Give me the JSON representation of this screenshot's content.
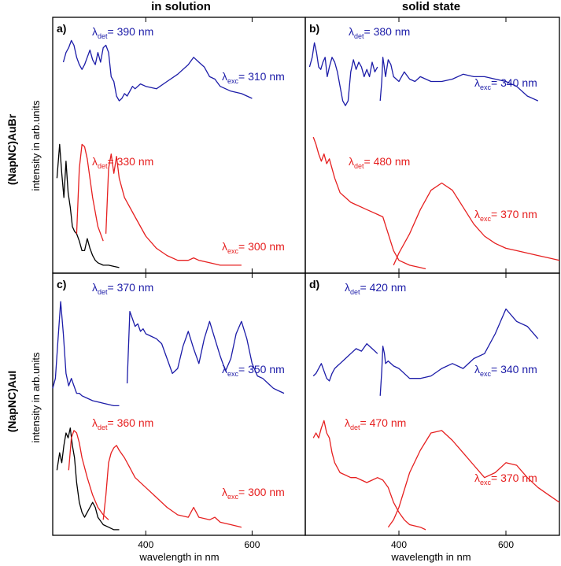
{
  "figure": {
    "column_titles": [
      "in solution",
      "solid state"
    ],
    "row_titles": [
      "(NapNC)AuBr",
      "(NapNC)AuI"
    ],
    "ylabel": "intensity in arb.units",
    "xlabel": "wavelength in nm"
  },
  "colors": {
    "blue": "#1c1ca8",
    "red": "#e62020",
    "black": "#000000"
  },
  "chart_data": [
    {
      "panel": "a)",
      "type": "line",
      "xlim": [
        225,
        700
      ],
      "xticks": [
        400,
        600
      ],
      "ylim": [
        0,
        1
      ],
      "annotations": [
        {
          "sym": "λ",
          "sub": "det",
          "text": "= 390 nm",
          "color": "blue"
        },
        {
          "sym": "λ",
          "sub": "exc",
          "text": "= 310 nm",
          "color": "blue"
        },
        {
          "sym": "λ",
          "sub": "det",
          "text": "= 330 nm",
          "color": "red"
        },
        {
          "sym": "λ",
          "sub": "exc",
          "text": "= 300 nm",
          "color": "red"
        }
      ],
      "series": [
        {
          "color": "black",
          "x": [
            233,
            238,
            242,
            246,
            250,
            254,
            258,
            262,
            266,
            270,
            275,
            280,
            285,
            290,
            295,
            300,
            305,
            310,
            320,
            330,
            340,
            350
          ],
          "y": [
            0.38,
            0.52,
            0.4,
            0.3,
            0.45,
            0.32,
            0.26,
            0.18,
            0.16,
            0.15,
            0.12,
            0.08,
            0.08,
            0.13,
            0.09,
            0.06,
            0.04,
            0.03,
            0.02,
            0.02,
            0.015,
            0.01
          ]
        },
        {
          "color": "red",
          "x": [
            270,
            275,
            280,
            285,
            290,
            300,
            310,
            320
          ],
          "y": [
            0.15,
            0.42,
            0.52,
            0.51,
            0.46,
            0.3,
            0.18,
            0.12
          ]
        },
        {
          "color": "red",
          "x": [
            325,
            330,
            335,
            340,
            345,
            350,
            360,
            380,
            400,
            420,
            440,
            460,
            480,
            490,
            500,
            520,
            540,
            560,
            580
          ],
          "y": [
            0.15,
            0.42,
            0.48,
            0.4,
            0.47,
            0.38,
            0.3,
            0.22,
            0.14,
            0.09,
            0.06,
            0.04,
            0.04,
            0.05,
            0.04,
            0.03,
            0.02,
            0.02,
            0.02
          ]
        },
        {
          "color": "blue",
          "x": [
            245,
            250,
            255,
            260,
            265,
            270,
            275,
            280,
            285,
            290,
            295,
            300,
            305,
            310,
            315,
            320,
            325,
            330,
            335,
            340,
            345,
            350,
            355,
            360,
            365,
            370,
            375,
            380,
            390,
            400,
            420,
            440,
            460,
            480,
            490,
            500,
            510,
            520,
            530,
            540,
            560,
            580,
            600
          ],
          "y": [
            0.86,
            0.9,
            0.92,
            0.95,
            0.93,
            0.88,
            0.85,
            0.83,
            0.85,
            0.88,
            0.91,
            0.87,
            0.85,
            0.9,
            0.86,
            0.92,
            0.93,
            0.9,
            0.8,
            0.78,
            0.72,
            0.7,
            0.71,
            0.73,
            0.72,
            0.74,
            0.76,
            0.75,
            0.77,
            0.76,
            0.75,
            0.78,
            0.81,
            0.85,
            0.88,
            0.86,
            0.84,
            0.8,
            0.79,
            0.76,
            0.74,
            0.73,
            0.71
          ]
        }
      ]
    },
    {
      "panel": "b)",
      "type": "line",
      "xlim": [
        225,
        700
      ],
      "xticks": [
        400,
        600
      ],
      "ylim": [
        0,
        1
      ],
      "annotations": [
        {
          "sym": "λ",
          "sub": "det",
          "text": "= 380 nm",
          "color": "blue"
        },
        {
          "sym": "λ",
          "sub": "exc",
          "text": "= 340 nm",
          "color": "blue"
        },
        {
          "sym": "λ",
          "sub": "det",
          "text": "= 480 nm",
          "color": "red"
        },
        {
          "sym": "λ",
          "sub": "exc",
          "text": "= 370 nm",
          "color": "red"
        }
      ],
      "series": [
        {
          "color": "blue",
          "x": [
            233,
            238,
            242,
            246,
            250,
            254,
            258,
            262,
            266,
            270,
            275,
            280,
            285,
            290,
            295,
            300,
            305,
            310,
            315,
            320,
            325,
            330,
            335,
            340,
            345,
            350,
            355,
            360
          ],
          "y": [
            0.84,
            0.88,
            0.94,
            0.9,
            0.84,
            0.83,
            0.86,
            0.88,
            0.8,
            0.84,
            0.88,
            0.86,
            0.82,
            0.76,
            0.7,
            0.68,
            0.7,
            0.82,
            0.87,
            0.83,
            0.86,
            0.84,
            0.8,
            0.83,
            0.8,
            0.86,
            0.82,
            0.84
          ]
        },
        {
          "color": "blue",
          "x": [
            365,
            368,
            370,
            372,
            375,
            380,
            385,
            390,
            400,
            410,
            420,
            430,
            440,
            460,
            480,
            500,
            520,
            540,
            560,
            580,
            600,
            620,
            640,
            660
          ],
          "y": [
            0.7,
            0.78,
            0.88,
            0.85,
            0.8,
            0.87,
            0.85,
            0.8,
            0.78,
            0.82,
            0.79,
            0.78,
            0.8,
            0.78,
            0.78,
            0.79,
            0.81,
            0.8,
            0.8,
            0.79,
            0.78,
            0.76,
            0.72,
            0.7
          ]
        },
        {
          "color": "red",
          "x": [
            240,
            245,
            250,
            255,
            260,
            265,
            270,
            275,
            280,
            290,
            300,
            310,
            320,
            330,
            340,
            350,
            360,
            370,
            380,
            390,
            400,
            420,
            440,
            450
          ],
          "y": [
            0.55,
            0.52,
            0.48,
            0.45,
            0.48,
            0.44,
            0.46,
            0.42,
            0.38,
            0.32,
            0.3,
            0.28,
            0.27,
            0.26,
            0.25,
            0.24,
            0.23,
            0.22,
            0.15,
            0.08,
            0.04,
            0.02,
            0.01,
            0.005
          ]
        },
        {
          "color": "red",
          "x": [
            390,
            400,
            420,
            440,
            460,
            480,
            500,
            520,
            540,
            560,
            580,
            600,
            620,
            640,
            660,
            680,
            700
          ],
          "y": [
            0.02,
            0.07,
            0.15,
            0.25,
            0.33,
            0.36,
            0.33,
            0.26,
            0.19,
            0.14,
            0.11,
            0.09,
            0.08,
            0.07,
            0.06,
            0.05,
            0.04
          ]
        }
      ]
    },
    {
      "panel": "c)",
      "type": "line",
      "xlim": [
        225,
        700
      ],
      "xticks": [
        400,
        600
      ],
      "ylim": [
        0,
        1
      ],
      "annotations": [
        {
          "sym": "λ",
          "sub": "det",
          "text": "= 370 nm",
          "color": "blue"
        },
        {
          "sym": "λ",
          "sub": "exc",
          "text": "= 350 nm",
          "color": "blue"
        },
        {
          "sym": "λ",
          "sub": "det",
          "text": "= 360 nm",
          "color": "red"
        },
        {
          "sym": "λ",
          "sub": "exc",
          "text": "= 300 nm",
          "color": "red"
        }
      ],
      "series": [
        {
          "color": "blue",
          "x": [
            225,
            230,
            235,
            240,
            245,
            250,
            255,
            260,
            265,
            270,
            275,
            280,
            290,
            300,
            320,
            340,
            350
          ],
          "y": [
            0.58,
            0.62,
            0.78,
            0.93,
            0.8,
            0.64,
            0.59,
            0.62,
            0.59,
            0.56,
            0.56,
            0.55,
            0.54,
            0.53,
            0.52,
            0.51,
            0.51
          ]
        },
        {
          "color": "blue",
          "x": [
            365,
            370,
            375,
            380,
            385,
            390,
            395,
            400,
            410,
            420,
            430,
            440,
            450,
            460,
            470,
            480,
            490,
            500,
            510,
            520,
            530,
            540,
            550,
            560,
            570,
            580,
            590,
            600,
            610,
            620,
            630,
            640,
            650,
            660
          ],
          "y": [
            0.6,
            0.89,
            0.86,
            0.83,
            0.84,
            0.81,
            0.82,
            0.8,
            0.79,
            0.78,
            0.76,
            0.7,
            0.64,
            0.66,
            0.75,
            0.81,
            0.74,
            0.68,
            0.78,
            0.85,
            0.78,
            0.71,
            0.65,
            0.7,
            0.8,
            0.85,
            0.78,
            0.68,
            0.63,
            0.62,
            0.6,
            0.58,
            0.57,
            0.56
          ]
        },
        {
          "color": "black",
          "x": [
            233,
            238,
            242,
            246,
            250,
            254,
            258,
            262,
            266,
            270,
            275,
            280,
            285,
            290,
            295,
            300,
            305,
            310,
            320,
            330,
            340,
            350
          ],
          "y": [
            0.25,
            0.32,
            0.28,
            0.35,
            0.4,
            0.38,
            0.42,
            0.35,
            0.3,
            0.2,
            0.12,
            0.08,
            0.06,
            0.08,
            0.1,
            0.12,
            0.1,
            0.06,
            0.03,
            0.02,
            0.01,
            0.01
          ]
        },
        {
          "color": "red",
          "x": [
            255,
            260,
            265,
            270,
            275,
            280,
            290,
            300,
            310,
            320,
            330
          ],
          "y": [
            0.25,
            0.38,
            0.41,
            0.4,
            0.36,
            0.3,
            0.22,
            0.15,
            0.1,
            0.07,
            0.05
          ]
        },
        {
          "color": "red",
          "x": [
            320,
            325,
            330,
            335,
            340,
            345,
            350,
            360,
            370,
            380,
            400,
            420,
            440,
            460,
            480,
            490,
            500,
            520,
            530,
            540,
            560,
            580
          ],
          "y": [
            0.05,
            0.15,
            0.28,
            0.32,
            0.34,
            0.35,
            0.33,
            0.3,
            0.26,
            0.22,
            0.18,
            0.14,
            0.1,
            0.07,
            0.06,
            0.1,
            0.06,
            0.05,
            0.06,
            0.04,
            0.03,
            0.02
          ]
        }
      ]
    },
    {
      "panel": "d)",
      "type": "line",
      "xlim": [
        225,
        700
      ],
      "xticks": [
        400,
        600
      ],
      "ylim": [
        0,
        1
      ],
      "annotations": [
        {
          "sym": "λ",
          "sub": "det",
          "text": "= 420 nm",
          "color": "blue"
        },
        {
          "sym": "λ",
          "sub": "exc",
          "text": "= 340 nm",
          "color": "blue"
        },
        {
          "sym": "λ",
          "sub": "det",
          "text": "= 470 nm",
          "color": "red"
        },
        {
          "sym": "λ",
          "sub": "exc",
          "text": "= 370 nm",
          "color": "red"
        }
      ],
      "series": [
        {
          "color": "blue",
          "x": [
            240,
            245,
            250,
            255,
            260,
            265,
            270,
            275,
            280,
            285,
            290,
            300,
            310,
            320,
            330,
            340,
            350,
            360
          ],
          "y": [
            0.63,
            0.64,
            0.66,
            0.68,
            0.65,
            0.62,
            0.61,
            0.64,
            0.66,
            0.67,
            0.68,
            0.7,
            0.72,
            0.74,
            0.73,
            0.76,
            0.74,
            0.72
          ]
        },
        {
          "color": "blue",
          "x": [
            365,
            368,
            370,
            373,
            375,
            380,
            390,
            400,
            420,
            440,
            460,
            480,
            500,
            520,
            540,
            560,
            580,
            600,
            620,
            640,
            660
          ],
          "y": [
            0.55,
            0.65,
            0.75,
            0.72,
            0.68,
            0.69,
            0.67,
            0.66,
            0.62,
            0.62,
            0.63,
            0.66,
            0.68,
            0.66,
            0.7,
            0.72,
            0.8,
            0.9,
            0.85,
            0.83,
            0.78
          ]
        },
        {
          "color": "red",
          "x": [
            240,
            245,
            250,
            255,
            260,
            265,
            270,
            275,
            280,
            290,
            300,
            310,
            320,
            330,
            340,
            350,
            360,
            370,
            380,
            390,
            400,
            410,
            420,
            440,
            450
          ],
          "y": [
            0.38,
            0.4,
            0.38,
            0.42,
            0.45,
            0.4,
            0.38,
            0.32,
            0.28,
            0.24,
            0.23,
            0.22,
            0.22,
            0.21,
            0.2,
            0.21,
            0.22,
            0.21,
            0.18,
            0.12,
            0.08,
            0.05,
            0.03,
            0.02,
            0.01
          ]
        },
        {
          "color": "red",
          "x": [
            380,
            390,
            400,
            410,
            420,
            440,
            460,
            480,
            500,
            520,
            540,
            560,
            580,
            600,
            620,
            640,
            660,
            680,
            700
          ],
          "y": [
            0.02,
            0.05,
            0.1,
            0.17,
            0.24,
            0.33,
            0.4,
            0.41,
            0.37,
            0.32,
            0.27,
            0.22,
            0.24,
            0.28,
            0.27,
            0.22,
            0.18,
            0.15,
            0.12
          ]
        }
      ]
    }
  ]
}
